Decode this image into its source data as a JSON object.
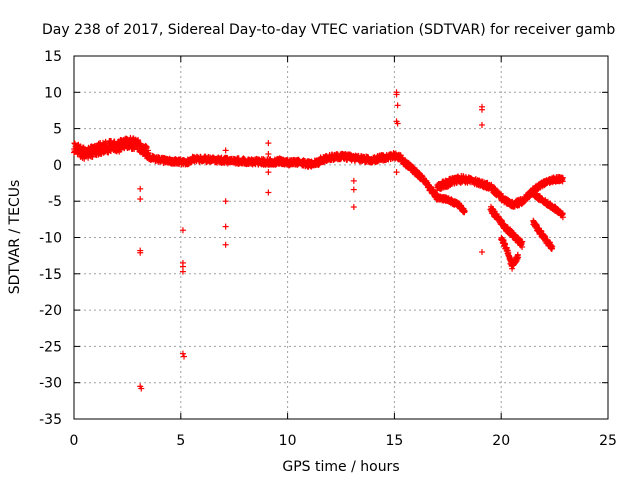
{
  "chart_data": {
    "type": "scatter",
    "title": "Day 238 of 2017, Sidereal Day-to-day VTEC variation (SDTVAR) for receiver gamb",
    "xlabel": "GPS time / hours",
    "ylabel": "SDTVAR / TECUs",
    "xlim": [
      0,
      25
    ],
    "ylim": [
      -35,
      15
    ],
    "xticks": [
      0,
      5,
      10,
      15,
      20,
      25
    ],
    "yticks": [
      15,
      10,
      5,
      0,
      -5,
      -10,
      -15,
      -20,
      -25,
      -30,
      -35
    ],
    "grid": true,
    "marker": "plus",
    "series": [
      {
        "name": "SDTVAR",
        "color": "#ff0000",
        "bands": [
          {
            "x": [
              0.0,
              0.5,
              1.0,
              1.5,
              2.0,
              2.5,
              3.0,
              3.5
            ],
            "y": [
              2.5,
              1.5,
              2.0,
              2.5,
              2.5,
              3.0,
              2.8,
              1.5
            ],
            "spread": 1.6
          },
          {
            "x": [
              3.5,
              4.0,
              4.5,
              5.0,
              5.5
            ],
            "y": [
              1.0,
              0.7,
              0.5,
              0.4,
              0.4
            ],
            "spread": 0.7
          },
          {
            "x": [
              5.5,
              6.0,
              7.0,
              8.0,
              9.0,
              9.5
            ],
            "y": [
              0.8,
              0.8,
              0.6,
              0.5,
              0.4,
              0.4
            ],
            "spread": 0.8
          },
          {
            "x": [
              9.5,
              10.0,
              10.5,
              11.0,
              11.5
            ],
            "y": [
              0.6,
              0.3,
              0.4,
              0.1,
              0.3
            ],
            "spread": 0.8
          },
          {
            "x": [
              11.5,
              12.0,
              12.5,
              13.0,
              13.5,
              14.0,
              14.5,
              15.0,
              15.4
            ],
            "y": [
              0.6,
              1.0,
              1.2,
              1.0,
              0.8,
              0.7,
              1.0,
              1.3,
              0.8
            ],
            "spread": 0.8
          },
          {
            "x": [
              15.4,
              15.8,
              16.2,
              16.6,
              17.0
            ],
            "y": [
              0.5,
              -0.5,
              -1.5,
              -3.0,
              -4.5
            ],
            "spread": 0.8
          },
          {
            "x": [
              17.0,
              17.5,
              18.0,
              18.5
            ],
            "y": [
              -3.0,
              -2.5,
              -2.0,
              -2.0
            ],
            "spread": 1.0
          },
          {
            "x": [
              17.0,
              17.5,
              18.0,
              18.3
            ],
            "y": [
              -4.5,
              -4.8,
              -5.5,
              -6.5
            ],
            "spread": 0.6
          },
          {
            "x": [
              18.5,
              19.0,
              19.5,
              20.0,
              20.5,
              21.0
            ],
            "y": [
              -2.0,
              -2.5,
              -3.0,
              -4.5,
              -5.5,
              -5.0
            ],
            "spread": 0.8
          },
          {
            "x": [
              19.5,
              20.0,
              20.5,
              21.0
            ],
            "y": [
              -6.0,
              -8.0,
              -9.5,
              -11.0
            ],
            "spread": 0.8
          },
          {
            "x": [
              20.0,
              20.3,
              20.5,
              20.8
            ],
            "y": [
              -10.0,
              -12.0,
              -14.0,
              -12.5
            ],
            "spread": 0.7
          },
          {
            "x": [
              21.0,
              21.5,
              22.0,
              22.5,
              22.9
            ],
            "y": [
              -5.0,
              -3.5,
              -2.5,
              -2.0,
              -2.0
            ],
            "spread": 0.7
          },
          {
            "x": [
              21.5,
              22.0,
              22.5,
              22.9
            ],
            "y": [
              -4.0,
              -5.0,
              -6.0,
              -7.0
            ],
            "spread": 0.6
          },
          {
            "x": [
              21.5,
              22.0,
              22.4
            ],
            "y": [
              -8.0,
              -10.0,
              -11.5
            ],
            "spread": 0.7
          }
        ],
        "points": [
          [
            3.1,
            -3.3
          ],
          [
            3.1,
            -4.7
          ],
          [
            3.1,
            -11.8
          ],
          [
            3.1,
            -12.1
          ],
          [
            3.1,
            -30.5
          ],
          [
            3.15,
            -30.8
          ],
          [
            5.1,
            -9.0
          ],
          [
            5.1,
            -13.5
          ],
          [
            5.1,
            -14.0
          ],
          [
            5.1,
            -14.7
          ],
          [
            5.1,
            -26.0
          ],
          [
            5.15,
            -26.4
          ],
          [
            7.1,
            -5.0
          ],
          [
            7.1,
            -8.5
          ],
          [
            7.1,
            -11.0
          ],
          [
            7.1,
            2.0
          ],
          [
            9.1,
            3.0
          ],
          [
            9.1,
            1.5
          ],
          [
            9.1,
            -1.0
          ],
          [
            9.1,
            -3.8
          ],
          [
            13.1,
            -2.2
          ],
          [
            13.1,
            -3.4
          ],
          [
            13.1,
            -5.8
          ],
          [
            15.1,
            10.0
          ],
          [
            15.1,
            9.7
          ],
          [
            15.15,
            8.2
          ],
          [
            15.1,
            6.0
          ],
          [
            15.15,
            5.7
          ],
          [
            15.1,
            -1.0
          ],
          [
            19.1,
            8.0
          ],
          [
            19.1,
            7.6
          ],
          [
            19.1,
            5.5
          ],
          [
            19.1,
            -12.0
          ]
        ]
      }
    ]
  }
}
